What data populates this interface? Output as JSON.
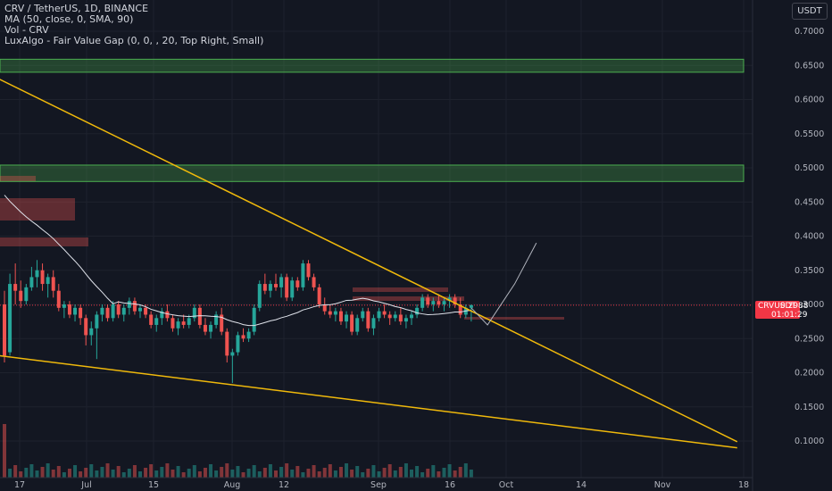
{
  "legend": {
    "symbol": "CRV / TetherUS, 1D, BINANCE",
    "ma": "MA (50, close, 0, SMA, 90)",
    "vol": "Vol - CRV",
    "fvg": "LuxAlgo - Fair Value Gap (0, 0, , 20, Top Right, Small)"
  },
  "toolbar": {
    "currency": "USDT"
  },
  "price_badge": {
    "symbol": "CRVUSDT",
    "value": "0.2988",
    "timer": "01:01:29"
  },
  "colors": {
    "background": "#131722",
    "bull": "#26a69a",
    "bear": "#ef5350",
    "trendline": "#f0b90b",
    "fvg_zone": "#4caf50",
    "ma_line": "#e0e3eb",
    "price_line": "#f23645"
  },
  "chart_data": {
    "type": "candlestick",
    "symbol": "CRVUSDT",
    "interval": "1D",
    "ylim": [
      0.08,
      0.74
    ],
    "y_ticks": [
      "0.7000",
      "0.6500",
      "0.6000",
      "0.5500",
      "0.5000",
      "0.4500",
      "0.4000",
      "0.3500",
      "0.3000",
      "0.2500",
      "0.2000",
      "0.1500",
      "0.1000"
    ],
    "x_ticks": [
      "17",
      "Jul",
      "15",
      "Aug",
      "12",
      "Sep",
      "16",
      "Oct",
      "14",
      "Nov",
      "18"
    ],
    "last_price": 0.2988,
    "candles": [
      [
        0.3,
        0.32,
        0.215,
        0.225
      ],
      [
        0.23,
        0.345,
        0.225,
        0.33
      ],
      [
        0.33,
        0.36,
        0.3,
        0.32
      ],
      [
        0.32,
        0.335,
        0.295,
        0.305
      ],
      [
        0.305,
        0.33,
        0.3,
        0.325
      ],
      [
        0.325,
        0.355,
        0.32,
        0.34
      ],
      [
        0.34,
        0.365,
        0.325,
        0.35
      ],
      [
        0.35,
        0.36,
        0.32,
        0.33
      ],
      [
        0.33,
        0.345,
        0.31,
        0.34
      ],
      [
        0.34,
        0.35,
        0.31,
        0.32
      ],
      [
        0.32,
        0.33,
        0.29,
        0.295
      ],
      [
        0.295,
        0.305,
        0.28,
        0.3
      ],
      [
        0.3,
        0.305,
        0.28,
        0.285
      ],
      [
        0.285,
        0.3,
        0.275,
        0.295
      ],
      [
        0.295,
        0.3,
        0.27,
        0.28
      ],
      [
        0.28,
        0.285,
        0.24,
        0.255
      ],
      [
        0.255,
        0.275,
        0.24,
        0.265
      ],
      [
        0.265,
        0.29,
        0.22,
        0.285
      ],
      [
        0.285,
        0.3,
        0.275,
        0.295
      ],
      [
        0.295,
        0.3,
        0.275,
        0.28
      ],
      [
        0.28,
        0.305,
        0.275,
        0.3
      ],
      [
        0.3,
        0.305,
        0.28,
        0.285
      ],
      [
        0.285,
        0.3,
        0.275,
        0.295
      ],
      [
        0.295,
        0.31,
        0.285,
        0.305
      ],
      [
        0.305,
        0.31,
        0.285,
        0.29
      ],
      [
        0.29,
        0.3,
        0.28,
        0.295
      ],
      [
        0.295,
        0.3,
        0.28,
        0.285
      ],
      [
        0.285,
        0.29,
        0.265,
        0.27
      ],
      [
        0.27,
        0.285,
        0.26,
        0.28
      ],
      [
        0.28,
        0.295,
        0.27,
        0.29
      ],
      [
        0.29,
        0.3,
        0.275,
        0.28
      ],
      [
        0.28,
        0.285,
        0.26,
        0.265
      ],
      [
        0.265,
        0.28,
        0.255,
        0.275
      ],
      [
        0.275,
        0.285,
        0.265,
        0.27
      ],
      [
        0.27,
        0.285,
        0.265,
        0.28
      ],
      [
        0.28,
        0.3,
        0.275,
        0.295
      ],
      [
        0.295,
        0.3,
        0.265,
        0.27
      ],
      [
        0.27,
        0.28,
        0.255,
        0.26
      ],
      [
        0.26,
        0.275,
        0.25,
        0.27
      ],
      [
        0.27,
        0.29,
        0.265,
        0.285
      ],
      [
        0.285,
        0.295,
        0.255,
        0.26
      ],
      [
        0.26,
        0.265,
        0.215,
        0.225
      ],
      [
        0.225,
        0.235,
        0.185,
        0.23
      ],
      [
        0.23,
        0.26,
        0.225,
        0.255
      ],
      [
        0.255,
        0.265,
        0.245,
        0.25
      ],
      [
        0.25,
        0.265,
        0.245,
        0.26
      ],
      [
        0.26,
        0.3,
        0.255,
        0.295
      ],
      [
        0.295,
        0.335,
        0.29,
        0.33
      ],
      [
        0.33,
        0.345,
        0.315,
        0.32
      ],
      [
        0.32,
        0.335,
        0.31,
        0.33
      ],
      [
        0.33,
        0.345,
        0.32,
        0.325
      ],
      [
        0.325,
        0.345,
        0.31,
        0.34
      ],
      [
        0.34,
        0.345,
        0.305,
        0.31
      ],
      [
        0.31,
        0.34,
        0.305,
        0.335
      ],
      [
        0.335,
        0.34,
        0.32,
        0.325
      ],
      [
        0.325,
        0.365,
        0.32,
        0.36
      ],
      [
        0.36,
        0.365,
        0.335,
        0.34
      ],
      [
        0.34,
        0.345,
        0.32,
        0.325
      ],
      [
        0.325,
        0.33,
        0.295,
        0.3
      ],
      [
        0.3,
        0.31,
        0.285,
        0.29
      ],
      [
        0.29,
        0.3,
        0.28,
        0.285
      ],
      [
        0.285,
        0.295,
        0.275,
        0.29
      ],
      [
        0.29,
        0.295,
        0.27,
        0.275
      ],
      [
        0.275,
        0.29,
        0.265,
        0.285
      ],
      [
        0.285,
        0.29,
        0.255,
        0.26
      ],
      [
        0.26,
        0.285,
        0.255,
        0.28
      ],
      [
        0.28,
        0.295,
        0.275,
        0.29
      ],
      [
        0.29,
        0.295,
        0.26,
        0.265
      ],
      [
        0.265,
        0.285,
        0.255,
        0.28
      ],
      [
        0.28,
        0.295,
        0.275,
        0.29
      ],
      [
        0.29,
        0.3,
        0.28,
        0.285
      ],
      [
        0.285,
        0.29,
        0.27,
        0.28
      ],
      [
        0.28,
        0.29,
        0.275,
        0.285
      ],
      [
        0.285,
        0.295,
        0.27,
        0.275
      ],
      [
        0.275,
        0.285,
        0.265,
        0.28
      ],
      [
        0.28,
        0.29,
        0.27,
        0.285
      ],
      [
        0.285,
        0.3,
        0.28,
        0.295
      ],
      [
        0.295,
        0.315,
        0.29,
        0.31
      ],
      [
        0.31,
        0.315,
        0.295,
        0.3
      ],
      [
        0.3,
        0.31,
        0.29,
        0.305
      ],
      [
        0.305,
        0.315,
        0.295,
        0.3
      ],
      [
        0.3,
        0.31,
        0.29,
        0.305
      ],
      [
        0.305,
        0.315,
        0.295,
        0.31
      ],
      [
        0.31,
        0.315,
        0.295,
        0.3
      ],
      [
        0.3,
        0.31,
        0.28,
        0.285
      ],
      [
        0.285,
        0.3,
        0.28,
        0.295
      ],
      [
        0.295,
        0.3,
        0.275,
        0.2988
      ]
    ],
    "projection": [
      {
        "date_index": 86,
        "price": 0.295
      },
      {
        "date_index": 89,
        "price": 0.27
      },
      {
        "date_index": 94,
        "price": 0.33
      },
      {
        "date_index": 98,
        "price": 0.39
      }
    ],
    "trendlines": [
      {
        "from": {
          "date_index": -1,
          "price": 0.63
        },
        "to": {
          "date_index": 135,
          "price": 0.099
        }
      },
      {
        "from": {
          "date_index": -1,
          "price": 0.225
        },
        "to": {
          "date_index": 135,
          "price": 0.09
        }
      }
    ],
    "fvg_zones": [
      {
        "low": 0.64,
        "high": 0.659
      },
      {
        "low": 0.48,
        "high": 0.504
      }
    ]
  }
}
